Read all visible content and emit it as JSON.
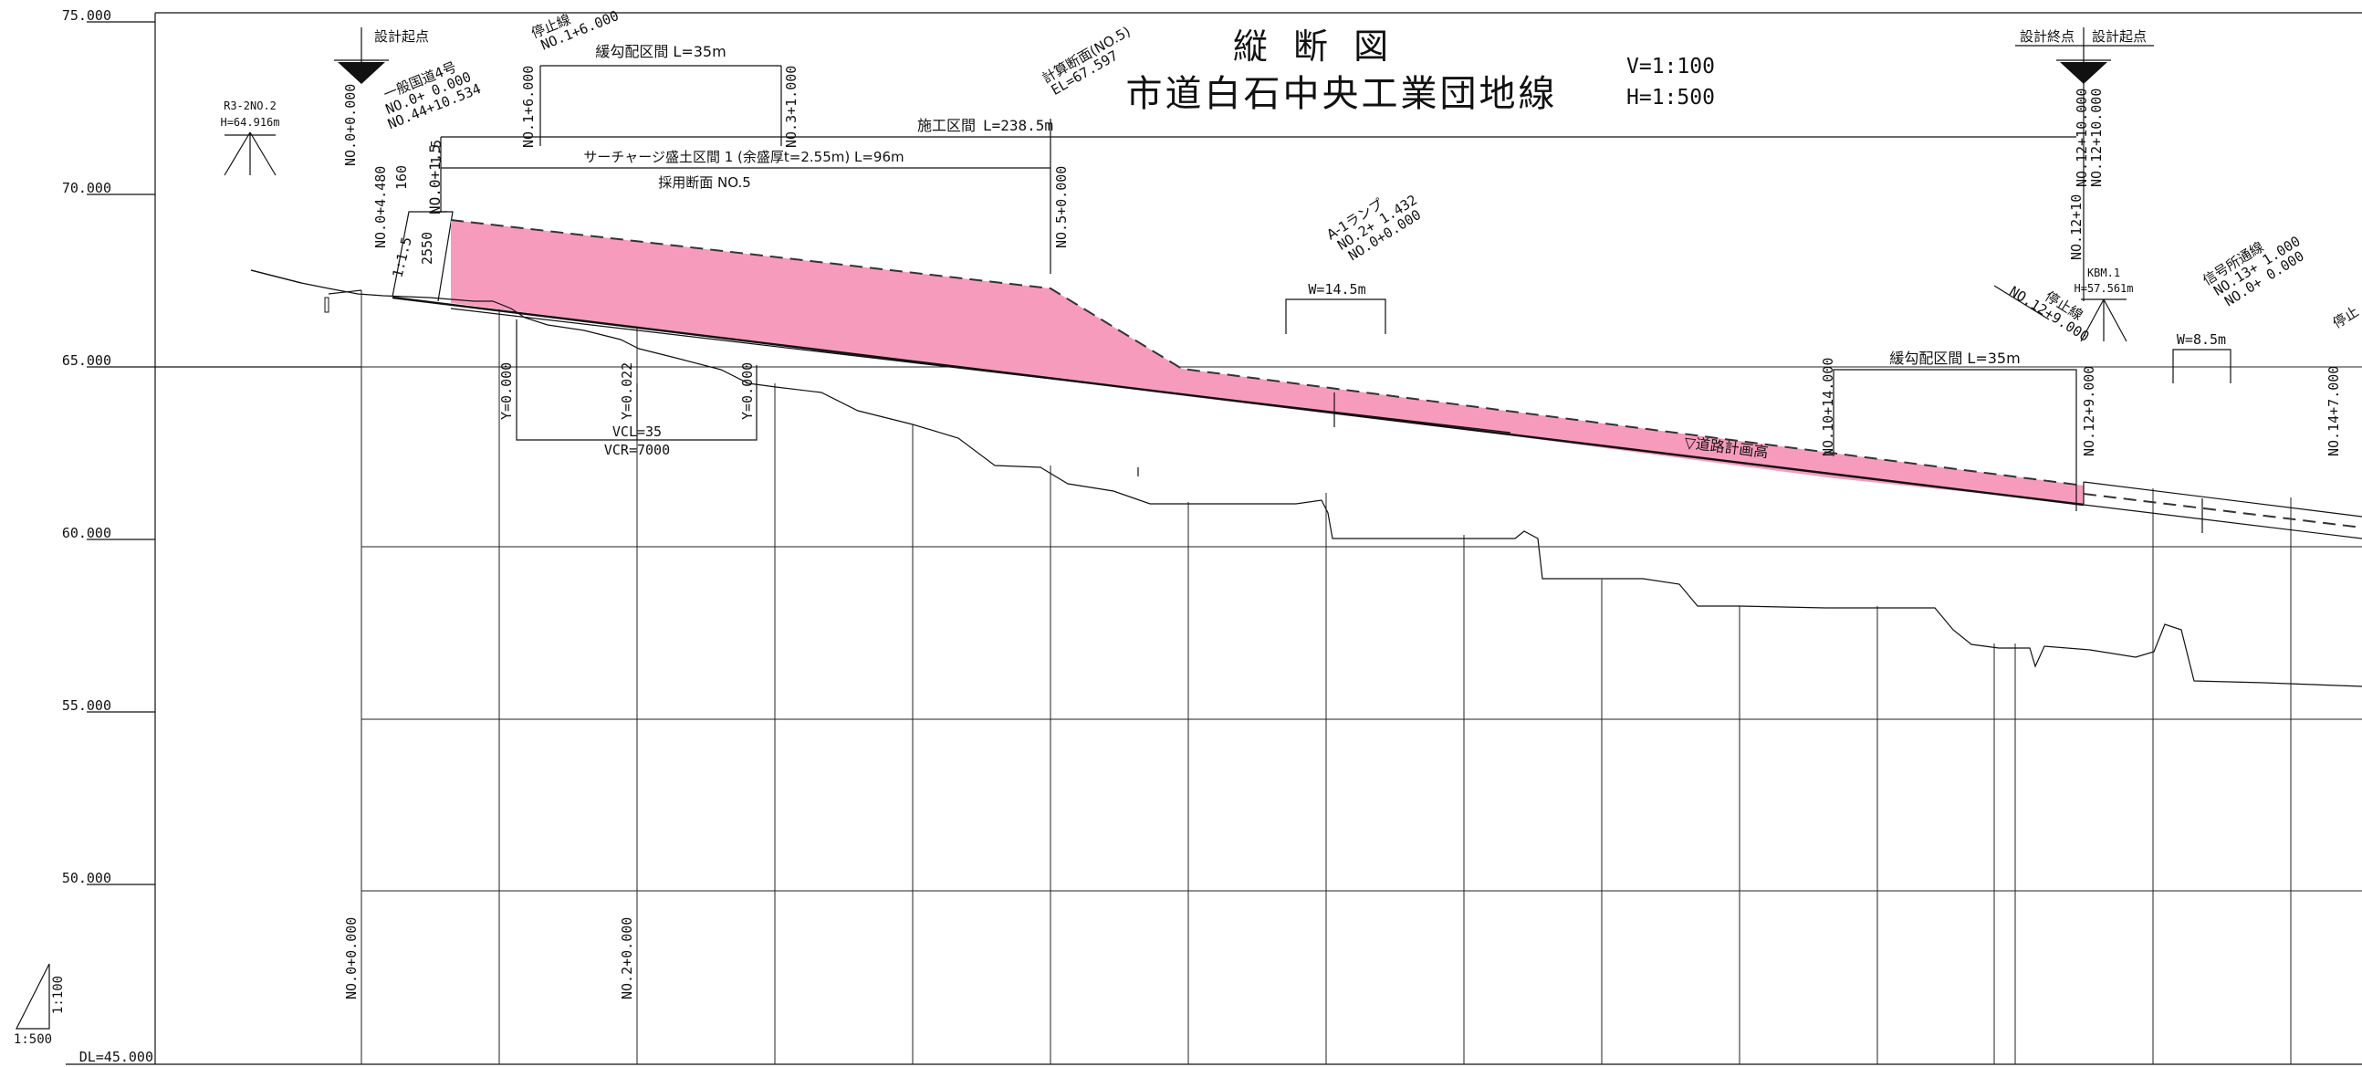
{
  "title": {
    "main": "縦 断 図",
    "route": "市道白石中央工業団地線",
    "v_scale": "V=1:100",
    "h_scale": "H=1:500"
  },
  "elevation_axis": {
    "labels": [
      "75.000",
      "70.000",
      "65.000",
      "60.000",
      "55.000",
      "50.000"
    ],
    "datum": "DL=45.000"
  },
  "scale_triangle": {
    "vertical": "1:100",
    "horizontal": "1:500"
  },
  "benchmarks": {
    "r3": {
      "name": "R3-2NO.2",
      "height": "H=64.916m"
    },
    "kbm": {
      "name": "KBM.1",
      "height": "H=57.561m"
    }
  },
  "start": {
    "label": "設計起点",
    "station": "NO.0+0.000",
    "road_name": "一般国道4号",
    "road_st1": "NO.0+ 0.000",
    "road_st2": "NO.44+10.534"
  },
  "end": {
    "label_end": "設計終点",
    "label_start": "設計起点",
    "station1": "NO.12+10.000",
    "station2": "NO.12+10.000",
    "station3": "NO.12+10"
  },
  "stop_line_1": {
    "label": "停止線",
    "station": "NO.1+6.000"
  },
  "stop_line_2": {
    "label": "停止線",
    "station": "NO.12+9.000"
  },
  "stop_line_3": {
    "label": "停止"
  },
  "gentle_section_1": {
    "label": "緩勾配区間 L=35m",
    "st_a": "NO.1+6.000",
    "st_b": "NO.3+1.000"
  },
  "gentle_section_2": {
    "label": "緩勾配区間 L=35m",
    "st_a": "NO.10+14.000",
    "st_b": "NO.12+9.000"
  },
  "calc_section": {
    "label": "計算断面(NO.5)",
    "el": "EL=67.597",
    "station": "NO.5+0.000"
  },
  "construction": {
    "label": "施工区間",
    "length": "L=238.5m"
  },
  "surcharge": {
    "label": "サーチャージ盛土区間 1 (余盛厚t=2.55m) L=96m",
    "adopted": "採用断面 NO.5"
  },
  "embankment": {
    "st_a": "NO.0+4.480",
    "st_b": "NO.0+1.5",
    "h1": "160",
    "h2": "1.5",
    "thickness": "2550",
    "slope": "1:1.5"
  },
  "vertical_curve": {
    "y1": "Y=0.000",
    "y2": "Y=0.022",
    "y3": "Y=0.000",
    "vcl": "VCL=35",
    "vcr": "VCR=7000"
  },
  "ramp": {
    "name": "A-1ランプ",
    "st1": "NO.2+ 1.432",
    "st2": "NO.0+0.000",
    "width": "W=14.5m"
  },
  "signal_road": {
    "name": "信号所通線",
    "st1": "NO.13+ 1.000",
    "st2": "NO.0+ 0.000",
    "width": "W=8.5m"
  },
  "far_station": "NO.14+7.000",
  "road_plan_label": "▽道路計画高",
  "bottom_stations": [
    "NO.0+0.000",
    "NO.2+0.000"
  ],
  "colors": {
    "fill_pink": "#f79bbd",
    "line": "#111111"
  }
}
